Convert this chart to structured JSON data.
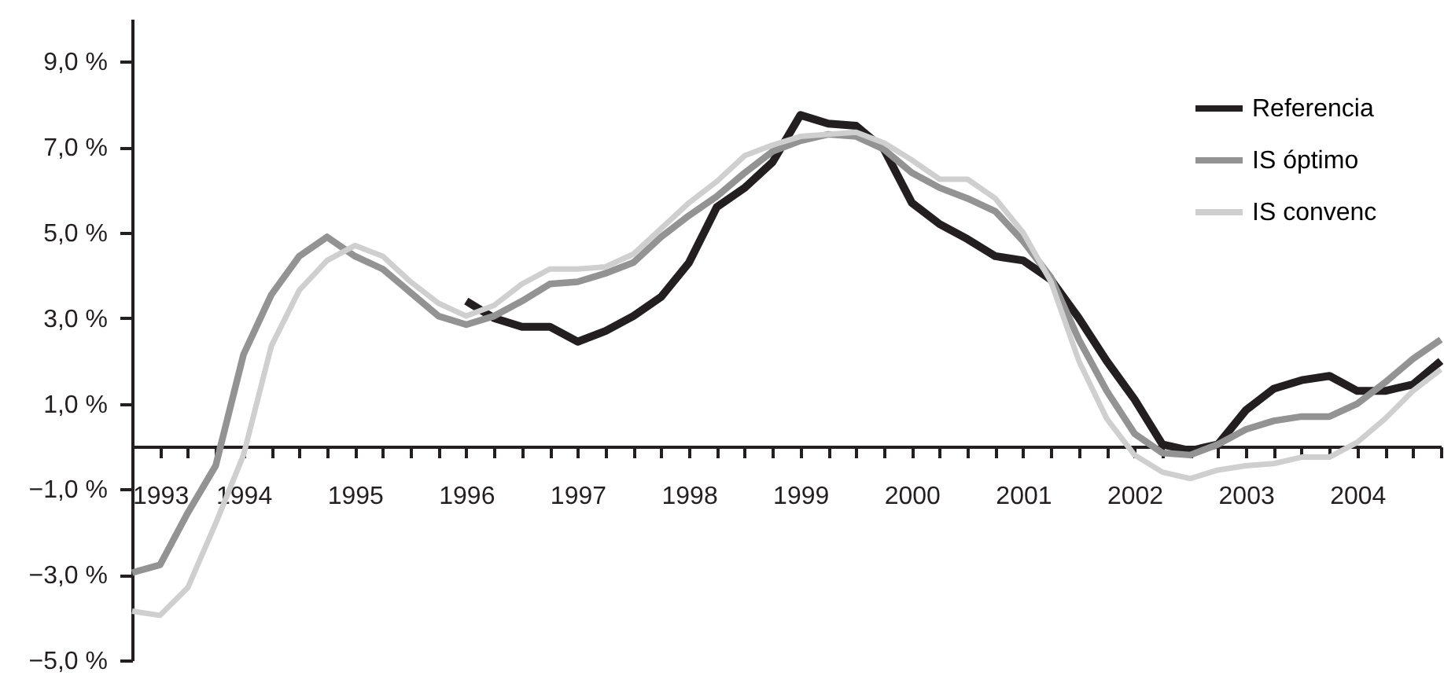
{
  "chart_data": {
    "type": "line",
    "x": [
      1993,
      1993.25,
      1993.5,
      1993.75,
      1994,
      1994.25,
      1994.5,
      1994.75,
      1995,
      1995.25,
      1995.5,
      1995.75,
      1996,
      1996.25,
      1996.5,
      1996.75,
      1997,
      1997.25,
      1997.5,
      1997.75,
      1998,
      1998.25,
      1998.5,
      1998.75,
      1999,
      1999.25,
      1999.5,
      1999.75,
      2000,
      2000.25,
      2000.5,
      2000.75,
      2001,
      2001.25,
      2001.5,
      2001.75,
      2002,
      2002.25,
      2002.5,
      2002.75,
      2003,
      2003.25,
      2003.5,
      2003.75,
      2004,
      2004.25,
      2004.5,
      2004.75
    ],
    "series": [
      {
        "name": "Referencia",
        "color": "#231f20",
        "values": [
          null,
          null,
          null,
          null,
          null,
          null,
          null,
          null,
          null,
          null,
          null,
          null,
          3.4,
          3.0,
          2.8,
          2.8,
          2.45,
          2.7,
          3.05,
          3.5,
          4.3,
          5.6,
          6.05,
          6.65,
          7.75,
          7.55,
          7.5,
          6.95,
          5.7,
          5.2,
          4.85,
          4.45,
          4.35,
          3.9,
          3.0,
          2.0,
          1.1,
          0.05,
          -0.1,
          0.05,
          0.85,
          1.35,
          1.55,
          1.65,
          1.3,
          1.3,
          1.45,
          2.0
        ]
      },
      {
        "name": "IS óptimo",
        "color": "#939393",
        "values": [
          -2.95,
          -2.77,
          -1.55,
          -0.45,
          2.15,
          3.55,
          4.45,
          4.9,
          4.45,
          4.15,
          3.6,
          3.05,
          2.85,
          3.05,
          3.4,
          3.8,
          3.85,
          4.05,
          4.3,
          4.9,
          5.4,
          5.85,
          6.4,
          6.9,
          7.15,
          7.3,
          7.25,
          6.95,
          6.4,
          6.05,
          5.8,
          5.5,
          4.8,
          3.95,
          2.5,
          1.3,
          0.3,
          -0.15,
          -0.2,
          0.05,
          0.4,
          0.6,
          0.7,
          0.7,
          1.0,
          1.5,
          2.05,
          2.5
        ]
      },
      {
        "name": "IS convenc",
        "color": "#cfcfcf",
        "values": [
          -3.85,
          -3.95,
          -3.3,
          -1.8,
          -0.2,
          2.35,
          3.65,
          4.35,
          4.7,
          4.45,
          3.85,
          3.35,
          3.05,
          3.3,
          3.8,
          4.15,
          4.15,
          4.2,
          4.5,
          5.1,
          5.7,
          6.2,
          6.8,
          7.05,
          7.25,
          7.3,
          7.35,
          7.1,
          6.7,
          6.25,
          6.25,
          5.8,
          5.0,
          3.85,
          2.0,
          0.65,
          -0.2,
          -0.6,
          -0.75,
          -0.55,
          -0.45,
          -0.4,
          -0.25,
          -0.25,
          0.1,
          0.65,
          1.3,
          1.8
        ]
      }
    ],
    "xlim": [
      1993,
      2004.75
    ],
    "xticks": [
      1993,
      {
        "value": 1993.25,
        "label": null
      },
      {
        "value": 1993.5,
        "label": null
      },
      {
        "value": 1993.75,
        "label": null
      },
      1994,
      {
        "value": 1994.25,
        "label": null
      },
      {
        "value": 1994.5,
        "label": null
      },
      {
        "value": 1994.75,
        "label": null
      },
      1995,
      {
        "value": 1995.25,
        "label": null
      },
      {
        "value": 1995.5,
        "label": null
      },
      {
        "value": 1995.75,
        "label": null
      },
      1996,
      {
        "value": 1996.25,
        "label": null
      },
      {
        "value": 1996.5,
        "label": null
      },
      {
        "value": 1996.75,
        "label": null
      },
      1997,
      {
        "value": 1997.25,
        "label": null
      },
      {
        "value": 1997.5,
        "label": null
      },
      {
        "value": 1997.75,
        "label": null
      },
      1998,
      {
        "value": 1998.25,
        "label": null
      },
      {
        "value": 1998.5,
        "label": null
      },
      {
        "value": 1998.75,
        "label": null
      },
      1999,
      {
        "value": 1999.25,
        "label": null
      },
      {
        "value": 1999.5,
        "label": null
      },
      {
        "value": 1999.75,
        "label": null
      },
      2000,
      {
        "value": 2000.25,
        "label": null
      },
      {
        "value": 2000.5,
        "label": null
      },
      {
        "value": 2000.75,
        "label": null
      },
      2001,
      {
        "value": 2001.25,
        "label": null
      },
      {
        "value": 2001.5,
        "label": null
      },
      {
        "value": 2001.75,
        "label": null
      },
      2002,
      {
        "value": 2002.25,
        "label": null
      },
      {
        "value": 2002.5,
        "label": null
      },
      {
        "value": 2002.75,
        "label": null
      },
      2003,
      {
        "value": 2003.25,
        "label": null
      },
      {
        "value": 2003.5,
        "label": null
      },
      {
        "value": 2003.75,
        "label": null
      },
      2004,
      {
        "value": 2004.25,
        "label": null
      },
      {
        "value": 2004.5,
        "label": null
      },
      {
        "value": 2004.75,
        "label": null
      }
    ],
    "ylim": [
      -5,
      10
    ],
    "yticks": [
      {
        "value": -5,
        "label": "−5,0 %"
      },
      {
        "value": -3,
        "label": "−3,0 %"
      },
      {
        "value": -1,
        "label": "−1,0 %"
      },
      {
        "value": 1,
        "label": "1,0 %"
      },
      {
        "value": 3,
        "label": "3,0 %"
      },
      {
        "value": 5,
        "label": "5,0 %"
      },
      {
        "value": 7,
        "label": "7,0 %"
      },
      {
        "value": 9,
        "label": "9,0 %"
      }
    ],
    "grid": false,
    "legend": "top right",
    "marker": "none",
    "line_style": "solid"
  }
}
